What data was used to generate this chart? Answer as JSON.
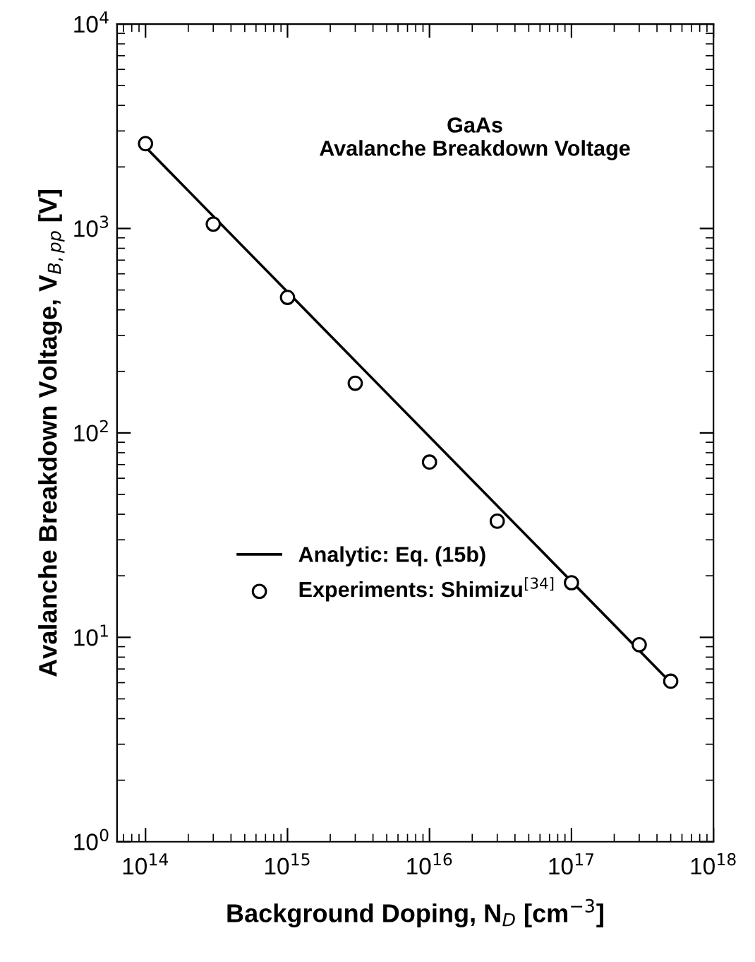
{
  "chart_data": {
    "type": "line",
    "title": "GaAs\nAvalanche Breakdown Voltage",
    "xlabel": "Background Doping, N$_{D}$ [cm$^{−3}$]",
    "ylabel": "Avalanche Breakdown Voltage, V$_{B,pp}$ [V]",
    "log": "xy",
    "xlim": [
      63000000000000.0,
      1e+18
    ],
    "ylim": [
      1,
      10000
    ],
    "xticks": [
      {
        "value": 100000000000000.0,
        "label": "10$^{14}$"
      },
      {
        "value": 1000000000000000.0,
        "label": "10$^{15}$"
      },
      {
        "value": 1e+16,
        "label": "10$^{16}$"
      },
      {
        "value": 1e+17,
        "label": "10$^{17}$"
      },
      {
        "value": 1e+18,
        "label": "10$^{18}$"
      }
    ],
    "yticks": [
      {
        "value": 1,
        "label": "10$^{0}$"
      },
      {
        "value": 10,
        "label": "10$^{1}$"
      },
      {
        "value": 100,
        "label": "10$^{2}$"
      },
      {
        "value": 1000,
        "label": "10$^{3}$"
      },
      {
        "value": 10000,
        "label": "10$^{4}$"
      }
    ],
    "grid": false,
    "legend": "lower left",
    "series": [
      {
        "name": "Analytic: Eq. (15b)",
        "color": "#000000",
        "marker": "none",
        "line_style": "solid",
        "x": [
          100000000000000.0,
          5e+17
        ],
        "values": [
          2500,
          6.0
        ]
      },
      {
        "name": "Experiments: Shimizu$^{[34]}$",
        "type": "scatter",
        "color": "#000000",
        "marker": "circle",
        "x": [
          100000000000000.0,
          300000000000000.0,
          1000000000000000.0,
          3000000000000000.0,
          1e+16,
          3e+16,
          1e+17,
          3e+17,
          5e+17
        ],
        "values": [
          2600,
          1050,
          460,
          175,
          72,
          37,
          18.5,
          9.2,
          6.1
        ]
      }
    ]
  }
}
